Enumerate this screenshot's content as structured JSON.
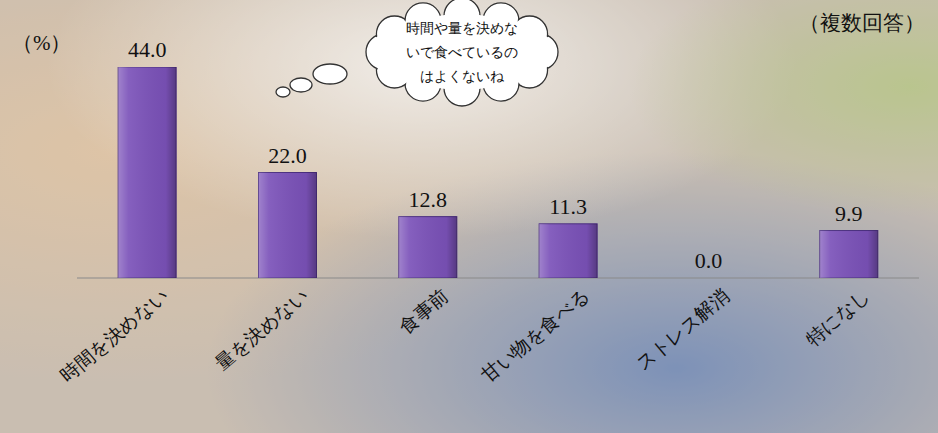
{
  "chart_data": {
    "type": "bar",
    "ylabel": "（%）",
    "annotations": [
      "（複数回答）",
      "時間や量を決めないで食べているのはよくないね"
    ],
    "categories": [
      "時間を決めない",
      "量を決めない",
      "食事前",
      "甘い物を食べる",
      "ストレス解消",
      "特になし"
    ],
    "values": [
      44.0,
      22.0,
      12.8,
      11.3,
      0.0,
      9.9
    ],
    "value_labels": [
      "44.0",
      "22.0",
      "12.8",
      "11.3",
      "0.0",
      "9.9"
    ],
    "color": "#7b52b9",
    "ylim": [
      0,
      44
    ],
    "data_labels": true,
    "tick_labels": "x",
    "grid": false
  }
}
